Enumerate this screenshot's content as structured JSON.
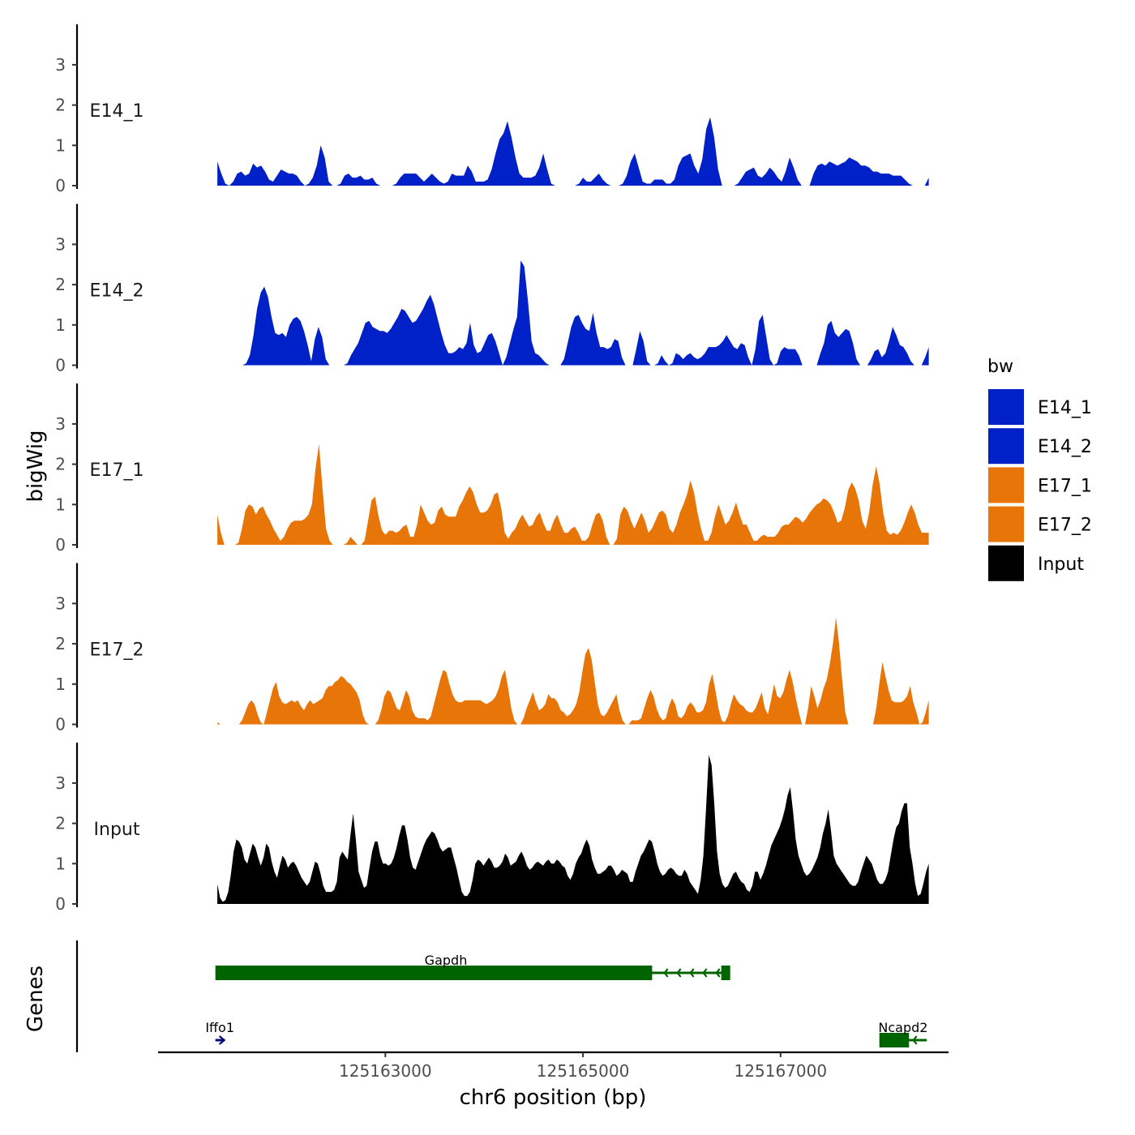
{
  "chart_data": {
    "type": "area",
    "xlabel": "chr6 position (bp)",
    "ylabel": "bigWig",
    "genes_label": "Genes",
    "x_range": [
      125161300,
      125168500
    ],
    "xlim": [
      125160700,
      125168700
    ],
    "ylim": [
      0,
      3.9
    ],
    "y_ticks": [
      0,
      1,
      2,
      3
    ],
    "x_ticks": [
      125163000,
      125165000,
      125167000
    ],
    "x_tick_labels": [
      "125163000",
      "125165000",
      "125167000"
    ],
    "legend": {
      "title": "bw",
      "placement": "right",
      "entries": [
        {
          "label": "E14_1",
          "color": "#0020c8"
        },
        {
          "label": "E14_2",
          "color": "#0020c8"
        },
        {
          "label": "E17_1",
          "color": "#e87508"
        },
        {
          "label": "E17_2",
          "color": "#e87508"
        },
        {
          "label": "Input",
          "color": "#000000"
        }
      ]
    },
    "series": [
      {
        "name": "E14_1",
        "label": "E14_1",
        "color": "#0020c8",
        "values": [
          0.6,
          0.3,
          0.05,
          0.0,
          0.1,
          0.3,
          0.35,
          0.25,
          0.3,
          0.55,
          0.45,
          0.5,
          0.35,
          0.15,
          0.1,
          0.25,
          0.4,
          0.35,
          0.3,
          0.3,
          0.25,
          0.1,
          0.0,
          0.05,
          0.2,
          0.5,
          1.0,
          0.7,
          0.1,
          0.0,
          0.0,
          0.05,
          0.25,
          0.3,
          0.2,
          0.2,
          0.25,
          0.15,
          0.15,
          0.2,
          0.05,
          0.0,
          0.0,
          0.0,
          0.0,
          0.05,
          0.2,
          0.3,
          0.3,
          0.3,
          0.3,
          0.2,
          0.1,
          0.2,
          0.3,
          0.2,
          0.1,
          0.05,
          0.1,
          0.3,
          0.25,
          0.25,
          0.25,
          0.5,
          0.35,
          0.1,
          0.1,
          0.1,
          0.15,
          0.4,
          0.8,
          1.15,
          1.3,
          1.6,
          1.2,
          0.7,
          0.3,
          0.2,
          0.2,
          0.2,
          0.25,
          0.45,
          0.8,
          0.4,
          0.05,
          0.0,
          0.0,
          0.0,
          0.0,
          0.0,
          0.0,
          0.05,
          0.2,
          0.1,
          0.1,
          0.2,
          0.3,
          0.15,
          0.05,
          0.0,
          0.0,
          0.0,
          0.05,
          0.25,
          0.6,
          0.8,
          0.45,
          0.1,
          0.05,
          0.05,
          0.15,
          0.15,
          0.15,
          0.05,
          0.05,
          0.15,
          0.5,
          0.7,
          0.75,
          0.8,
          0.5,
          0.3,
          0.65,
          1.4,
          1.7,
          1.2,
          0.4,
          0.0,
          0.0,
          0.0,
          0.0,
          0.05,
          0.2,
          0.35,
          0.4,
          0.45,
          0.25,
          0.2,
          0.3,
          0.45,
          0.35,
          0.2,
          0.1,
          0.35,
          0.7,
          0.45,
          0.15,
          0.0,
          0.0,
          0.0,
          0.3,
          0.5,
          0.55,
          0.5,
          0.6,
          0.55,
          0.5,
          0.55,
          0.6,
          0.7,
          0.65,
          0.6,
          0.5,
          0.5,
          0.45,
          0.35,
          0.35,
          0.3,
          0.3,
          0.3,
          0.25,
          0.25,
          0.25,
          0.15,
          0.05,
          0.0,
          0.0,
          0.0,
          0.0,
          0.2
        ]
      },
      {
        "name": "E14_2",
        "label": "E14_2",
        "color": "#0020c8",
        "values": [
          0.0,
          0.0,
          0.0,
          0.0,
          0.0,
          0.0,
          0.0,
          0.0,
          0.05,
          0.25,
          0.75,
          1.4,
          1.8,
          1.95,
          1.7,
          1.2,
          0.8,
          0.75,
          0.8,
          0.7,
          1.0,
          1.15,
          1.2,
          1.1,
          0.85,
          0.5,
          0.1,
          0.65,
          0.95,
          0.7,
          0.15,
          0.0,
          0.0,
          0.0,
          0.0,
          0.0,
          0.05,
          0.25,
          0.4,
          0.55,
          0.8,
          1.05,
          1.1,
          0.95,
          0.9,
          0.85,
          0.85,
          0.8,
          0.9,
          1.05,
          1.2,
          1.4,
          1.35,
          1.2,
          1.05,
          1.1,
          1.25,
          1.4,
          1.6,
          1.75,
          1.5,
          1.15,
          0.8,
          0.5,
          0.3,
          0.3,
          0.35,
          0.45,
          0.4,
          0.55,
          1.05,
          0.5,
          0.3,
          0.35,
          0.55,
          0.75,
          0.8,
          0.6,
          0.3,
          0.0,
          0.2,
          0.55,
          0.9,
          1.2,
          2.6,
          2.45,
          1.6,
          0.6,
          0.3,
          0.25,
          0.15,
          0.05,
          0.0,
          0.0,
          0.0,
          0.0,
          0.15,
          0.55,
          0.95,
          1.2,
          1.25,
          1.05,
          0.9,
          0.85,
          1.3,
          0.8,
          0.45,
          0.45,
          0.4,
          0.45,
          0.65,
          0.6,
          0.2,
          0.0,
          0.0,
          0.0,
          0.4,
          0.85,
          0.6,
          0.1,
          0.0,
          0.0,
          0.05,
          0.25,
          0.1,
          0.0,
          0.05,
          0.3,
          0.25,
          0.15,
          0.25,
          0.3,
          0.2,
          0.15,
          0.2,
          0.3,
          0.45,
          0.45,
          0.45,
          0.5,
          0.6,
          0.75,
          0.6,
          0.45,
          0.4,
          0.55,
          0.5,
          0.2,
          0.0,
          0.4,
          1.1,
          1.25,
          0.7,
          0.15,
          0.0,
          0.05,
          0.35,
          0.45,
          0.4,
          0.4,
          0.4,
          0.25,
          0.0,
          0.0,
          0.0,
          0.0,
          0.0,
          0.3,
          0.55,
          1.0,
          1.1,
          0.8,
          0.7,
          0.8,
          0.9,
          0.85,
          0.55,
          0.15,
          0.0,
          0.0,
          0.0,
          0.15,
          0.35,
          0.4,
          0.2,
          0.3,
          0.6,
          0.95,
          0.75,
          0.5,
          0.45,
          0.3,
          0.1,
          0.0,
          0.0,
          0.0,
          0.2,
          0.45
        ]
      },
      {
        "name": "E17_1",
        "label": "E17_1",
        "color": "#e87508",
        "values": [
          0.75,
          0.3,
          0.0,
          0.0,
          0.0,
          0.0,
          0.05,
          0.4,
          0.85,
          1.0,
          0.95,
          0.75,
          0.9,
          0.95,
          0.75,
          0.6,
          0.4,
          0.25,
          0.1,
          0.2,
          0.4,
          0.55,
          0.6,
          0.6,
          0.6,
          0.65,
          0.75,
          1.0,
          1.9,
          2.5,
          1.4,
          0.4,
          0.1,
          0.0,
          0.0,
          0.0,
          0.0,
          0.05,
          0.2,
          0.1,
          0.0,
          0.0,
          0.1,
          0.6,
          1.1,
          1.2,
          0.7,
          0.35,
          0.25,
          0.35,
          0.35,
          0.3,
          0.35,
          0.45,
          0.5,
          0.2,
          0.2,
          0.5,
          1.0,
          0.8,
          0.6,
          0.5,
          0.55,
          0.85,
          0.95,
          0.75,
          0.7,
          0.7,
          0.7,
          0.95,
          1.1,
          1.3,
          1.45,
          1.3,
          1.0,
          0.8,
          0.8,
          0.85,
          1.0,
          1.25,
          1.3,
          0.9,
          0.3,
          0.15,
          0.3,
          0.4,
          0.6,
          0.75,
          0.6,
          0.45,
          0.5,
          0.7,
          0.8,
          0.55,
          0.35,
          0.35,
          0.6,
          0.75,
          0.5,
          0.3,
          0.3,
          0.4,
          0.45,
          0.3,
          0.1,
          0.1,
          0.2,
          0.5,
          0.75,
          0.8,
          0.6,
          0.2,
          0.0,
          0.0,
          0.15,
          0.75,
          0.95,
          0.85,
          0.6,
          0.4,
          0.6,
          0.8,
          0.6,
          0.3,
          0.4,
          0.6,
          0.8,
          0.85,
          0.75,
          0.4,
          0.3,
          0.5,
          0.8,
          1.0,
          1.25,
          1.6,
          1.3,
          0.8,
          0.4,
          0.1,
          0.1,
          0.3,
          0.7,
          1.0,
          0.75,
          0.5,
          0.6,
          0.8,
          1.05,
          0.75,
          0.5,
          0.5,
          0.3,
          0.1,
          0.1,
          0.2,
          0.25,
          0.2,
          0.2,
          0.2,
          0.3,
          0.45,
          0.5,
          0.5,
          0.6,
          0.7,
          0.65,
          0.55,
          0.65,
          0.8,
          0.9,
          1.0,
          1.05,
          1.15,
          1.1,
          1.0,
          0.8,
          0.55,
          0.6,
          0.9,
          1.35,
          1.55,
          1.4,
          1.1,
          0.6,
          0.4,
          0.8,
          1.5,
          1.95,
          1.5,
          0.8,
          0.35,
          0.25,
          0.3,
          0.25,
          0.35,
          0.55,
          0.8,
          1.0,
          0.8,
          0.5,
          0.3,
          0.3,
          0.3
        ]
      },
      {
        "name": "E17_2",
        "label": "E17_2",
        "color": "#e87508",
        "values": [
          0.05,
          0.0,
          0.0,
          0.0,
          0.0,
          0.0,
          0.0,
          0.0,
          0.1,
          0.3,
          0.5,
          0.6,
          0.5,
          0.25,
          0.05,
          0.0,
          0.3,
          0.6,
          0.9,
          1.05,
          0.7,
          0.55,
          0.5,
          0.55,
          0.6,
          0.55,
          0.6,
          0.45,
          0.35,
          0.5,
          0.6,
          0.5,
          0.55,
          0.6,
          0.65,
          0.85,
          0.95,
          0.95,
          1.05,
          1.1,
          1.2,
          1.15,
          1.05,
          1.0,
          0.9,
          0.8,
          0.6,
          0.25,
          0.05,
          0.0,
          0.0,
          0.0,
          0.1,
          0.35,
          0.7,
          0.85,
          0.8,
          0.6,
          0.4,
          0.35,
          0.6,
          0.85,
          0.7,
          0.35,
          0.2,
          0.15,
          0.15,
          0.15,
          0.1,
          0.2,
          0.5,
          0.8,
          1.1,
          1.35,
          1.3,
          1.0,
          0.75,
          0.6,
          0.55,
          0.55,
          0.6,
          0.6,
          0.6,
          0.6,
          0.6,
          0.6,
          0.55,
          0.5,
          0.55,
          0.6,
          0.7,
          0.9,
          1.2,
          1.35,
          0.9,
          0.4,
          0.1,
          0.0,
          0.0,
          0.15,
          0.4,
          0.6,
          0.8,
          0.55,
          0.35,
          0.4,
          0.5,
          0.75,
          0.65,
          0.65,
          0.55,
          0.35,
          0.3,
          0.2,
          0.25,
          0.35,
          0.5,
          0.8,
          1.3,
          1.75,
          1.9,
          1.6,
          1.05,
          0.5,
          0.25,
          0.2,
          0.3,
          0.45,
          0.6,
          0.75,
          0.35,
          0.1,
          0.0,
          0.0,
          0.1,
          0.1,
          0.1,
          0.15,
          0.4,
          0.65,
          0.85,
          0.7,
          0.4,
          0.2,
          0.1,
          0.15,
          0.45,
          0.65,
          0.5,
          0.2,
          0.15,
          0.25,
          0.45,
          0.55,
          0.45,
          0.3,
          0.3,
          0.35,
          0.55,
          1.0,
          1.25,
          0.85,
          0.4,
          0.1,
          0.05,
          0.2,
          0.5,
          0.75,
          0.6,
          0.5,
          0.45,
          0.35,
          0.3,
          0.3,
          0.4,
          0.6,
          0.8,
          0.4,
          0.25,
          0.6,
          1.0,
          0.7,
          0.65,
          0.8,
          1.1,
          1.35,
          1.05,
          0.65,
          0.3,
          0.0,
          0.0,
          0.4,
          0.95,
          0.7,
          0.4,
          0.6,
          0.9,
          1.1,
          1.5,
          2.0,
          2.65,
          2.0,
          1.1,
          0.3,
          0.0,
          0.0,
          0.0,
          0.0,
          0.0,
          0.0,
          0.0,
          0.0,
          0.0,
          0.4,
          1.0,
          1.55,
          1.2,
          0.85,
          0.6,
          0.55,
          0.55,
          0.55,
          0.6,
          0.7,
          0.95,
          0.55,
          0.3,
          0.0,
          0.05,
          0.3,
          0.6
        ]
      },
      {
        "name": "Input",
        "label": "Input",
        "color": "#000000",
        "values": [
          0.5,
          0.15,
          0.05,
          0.1,
          0.3,
          0.75,
          1.3,
          1.6,
          1.55,
          1.4,
          1.1,
          1.0,
          1.25,
          1.5,
          1.4,
          1.15,
          0.95,
          1.15,
          1.5,
          1.4,
          1.05,
          0.8,
          0.65,
          0.95,
          1.2,
          1.1,
          0.9,
          1.0,
          1.05,
          0.95,
          0.8,
          0.65,
          0.55,
          0.45,
          0.55,
          0.8,
          1.05,
          1.0,
          0.75,
          0.45,
          0.3,
          0.3,
          0.3,
          0.35,
          0.55,
          1.15,
          1.3,
          1.2,
          1.1,
          1.7,
          2.25,
          1.6,
          0.8,
          0.6,
          0.4,
          0.45,
          0.9,
          1.3,
          1.55,
          1.55,
          1.2,
          1.0,
          1.0,
          0.95,
          1.0,
          1.15,
          1.4,
          1.7,
          1.95,
          1.95,
          1.6,
          1.15,
          0.9,
          0.85,
          1.05,
          1.25,
          1.45,
          1.6,
          1.7,
          1.8,
          1.75,
          1.6,
          1.4,
          1.3,
          1.35,
          1.4,
          1.4,
          1.15,
          0.9,
          0.6,
          0.3,
          0.2,
          0.2,
          0.3,
          0.6,
          1.0,
          1.1,
          1.05,
          0.95,
          1.05,
          1.15,
          1.05,
          0.9,
          0.9,
          0.95,
          1.05,
          1.25,
          1.15,
          0.95,
          1.0,
          1.05,
          1.2,
          1.3,
          1.15,
          0.95,
          0.85,
          0.9,
          1.0,
          1.05,
          1.0,
          0.95,
          1.05,
          1.1,
          1.0,
          1.0,
          1.1,
          1.05,
          0.95,
          0.9,
          0.7,
          0.6,
          0.75,
          1.0,
          1.15,
          1.25,
          1.45,
          1.6,
          1.45,
          1.1,
          0.9,
          0.75,
          0.75,
          0.8,
          0.85,
          0.95,
          0.95,
          0.85,
          0.7,
          0.75,
          0.85,
          0.8,
          0.75,
          0.55,
          0.55,
          0.8,
          1.0,
          1.2,
          1.3,
          1.45,
          1.6,
          1.55,
          1.3,
          1.0,
          0.8,
          0.7,
          0.75,
          0.85,
          0.9,
          0.85,
          0.75,
          0.7,
          0.7,
          0.85,
          0.75,
          0.55,
          0.45,
          0.35,
          0.25,
          0.6,
          1.2,
          2.4,
          3.7,
          3.45,
          2.5,
          1.3,
          0.75,
          0.5,
          0.4,
          0.45,
          0.6,
          0.75,
          0.8,
          0.65,
          0.55,
          0.5,
          0.35,
          0.3,
          0.45,
          0.8,
          0.8,
          0.6,
          0.75,
          0.95,
          1.2,
          1.45,
          1.6,
          1.75,
          1.9,
          2.1,
          2.35,
          2.7,
          2.9,
          2.3,
          1.6,
          1.2,
          1.0,
          0.8,
          0.7,
          0.75,
          0.85,
          1.0,
          1.15,
          1.4,
          1.75,
          2.0,
          2.35,
          1.8,
          1.2,
          1.0,
          0.9,
          0.8,
          0.7,
          0.6,
          0.5,
          0.45,
          0.45,
          0.55,
          0.8,
          1.0,
          1.2,
          1.1,
          1.0,
          0.8,
          0.6,
          0.5,
          0.5,
          0.6,
          0.8,
          1.2,
          1.6,
          1.9,
          2.0,
          2.3,
          2.5,
          2.5,
          1.4,
          1.0,
          0.5,
          0.2,
          0.25,
          0.5,
          0.8,
          1.0
        ]
      }
    ],
    "genes": [
      {
        "name": "Gapdh",
        "start": 125161280,
        "end": 125166490,
        "strand": "-",
        "color": "#006400",
        "row": 0,
        "exons": [
          [
            125161280,
            125165700
          ],
          [
            125166400,
            125166490
          ]
        ]
      },
      {
        "name": "Iffo1",
        "start": 125161280,
        "end": 125161370,
        "strand": "+",
        "color": "#0b0b75",
        "row": 1,
        "exons": []
      },
      {
        "name": "Ncapd2",
        "start": 125168000,
        "end": 125168480,
        "strand": "-",
        "color": "#006400",
        "row": 1,
        "exons": [
          [
            125168000,
            125168300
          ]
        ]
      }
    ]
  }
}
